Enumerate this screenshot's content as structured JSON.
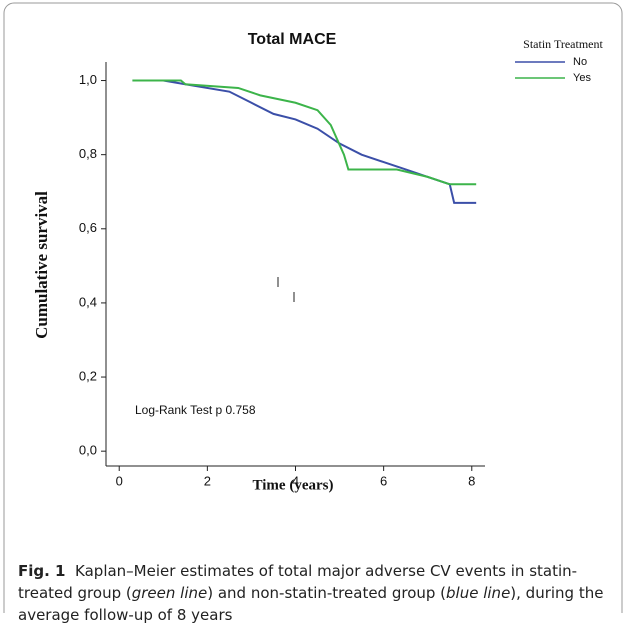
{
  "chart_data": {
    "type": "line",
    "title": "Total MACE",
    "x_label": "Time (years)",
    "y_label": "Cumulative survival",
    "xlim": [
      -0.3,
      8.3
    ],
    "ylim": [
      -0.04,
      1.05
    ],
    "xticks": [
      0,
      2,
      4,
      6,
      8
    ],
    "yticks": [
      {
        "value": 0,
        "label": "0,0"
      },
      {
        "value": 0.2,
        "label": "0,2"
      },
      {
        "value": 0.4,
        "label": "0,4"
      },
      {
        "value": 0.6,
        "label": "0,6"
      },
      {
        "value": 0.8,
        "label": "0,8"
      },
      {
        "value": 1,
        "label": "1,0"
      }
    ],
    "legend_title": "Statin Treatment",
    "legend": "top-right",
    "annotation": "Log-Rank Test p 0.758",
    "series": [
      {
        "name": "No",
        "color": "#3b4fa8",
        "x": [
          0.3,
          1.0,
          1.5,
          2.5,
          3.0,
          3.5,
          4.0,
          4.5,
          5.0,
          5.5,
          6.0,
          6.5,
          7.0,
          7.5,
          7.6,
          8.1
        ],
        "values": [
          1.0,
          1.0,
          0.99,
          0.97,
          0.94,
          0.91,
          0.895,
          0.87,
          0.83,
          0.8,
          0.78,
          0.76,
          0.74,
          0.72,
          0.67,
          0.67
        ]
      },
      {
        "name": "Yes",
        "color": "#3cb44a",
        "x": [
          0.3,
          1.4,
          1.5,
          2.7,
          3.2,
          4.0,
          4.5,
          4.8,
          5.1,
          5.2,
          6.3,
          7.0,
          7.5,
          8.1
        ],
        "values": [
          1.0,
          1.0,
          0.99,
          0.98,
          0.96,
          0.94,
          0.92,
          0.88,
          0.8,
          0.76,
          0.76,
          0.74,
          0.72,
          0.72
        ]
      }
    ]
  },
  "caption": {
    "label": "Fig. 1",
    "parts": [
      "Kaplan–Meier estimates of total major adverse CV events in statin-treated group (",
      "green line",
      ") and non-statin-treated group (",
      "blue line",
      "), during the average follow-up of 8 years"
    ]
  }
}
